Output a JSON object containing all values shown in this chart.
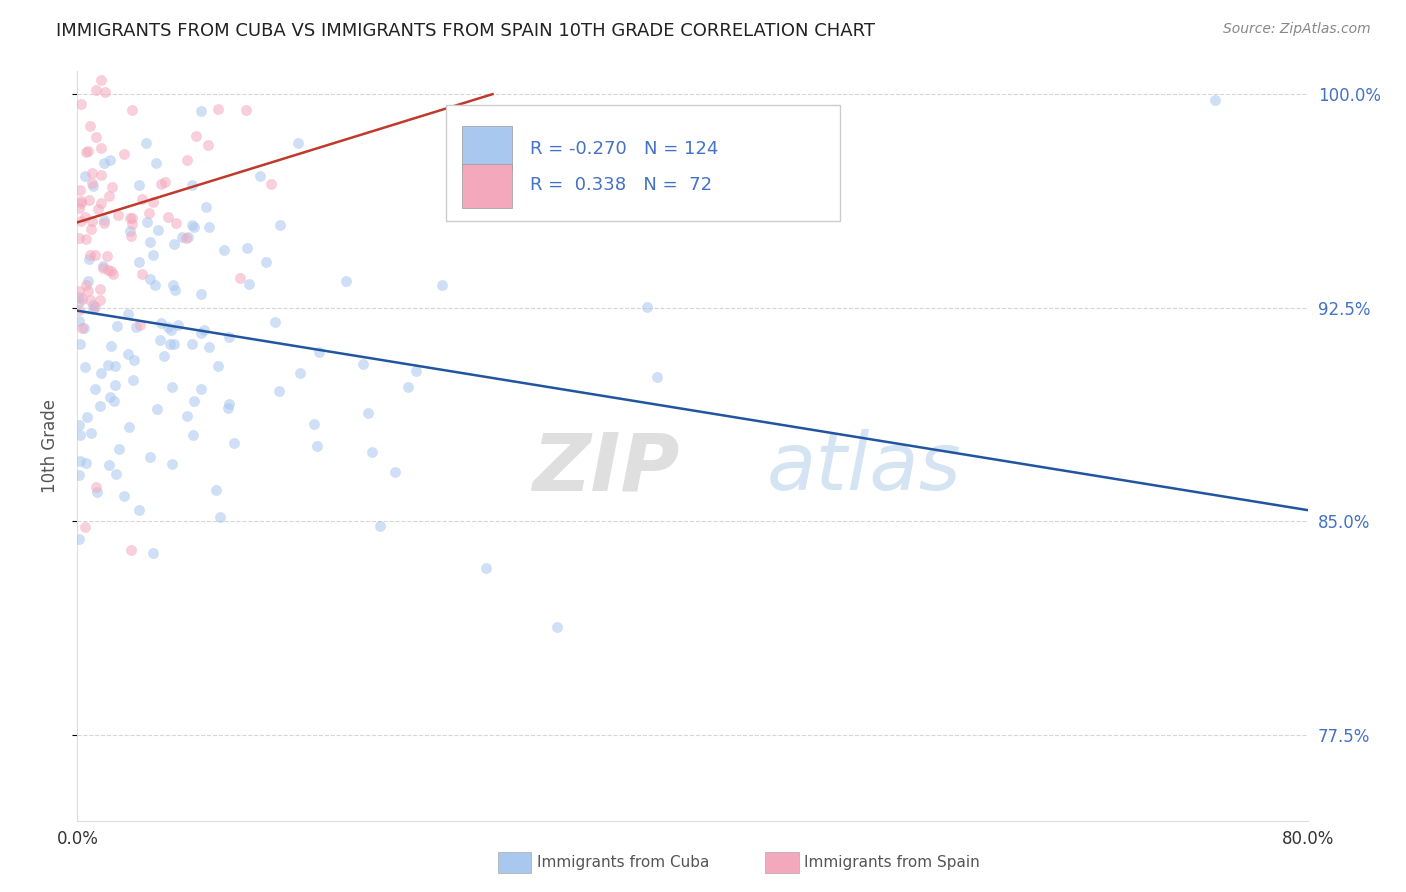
{
  "title": "IMMIGRANTS FROM CUBA VS IMMIGRANTS FROM SPAIN 10TH GRADE CORRELATION CHART",
  "source": "Source: ZipAtlas.com",
  "ylabel": "10th Grade",
  "watermark_zip": "ZIP",
  "watermark_atlas": "atlas",
  "legend_cuba": {
    "R": -0.27,
    "N": 124,
    "color": "#a8c8f0",
    "line_color": "#2155a0"
  },
  "legend_spain": {
    "R": 0.338,
    "N": 72,
    "color": "#f4a8bc",
    "line_color": "#c0392b"
  },
  "xlim": [
    0.0,
    0.8
  ],
  "ylim": [
    0.745,
    1.008
  ],
  "xticks": [
    0.0,
    0.1,
    0.2,
    0.3,
    0.4,
    0.5,
    0.6,
    0.7,
    0.8
  ],
  "xticklabels": [
    "0.0%",
    "",
    "",
    "",
    "",
    "",
    "",
    "",
    "80.0%"
  ],
  "yticks": [
    0.775,
    0.85,
    0.925,
    1.0
  ],
  "yticklabels": [
    "77.5%",
    "85.0%",
    "92.5%",
    "100.0%"
  ],
  "cuba_trendline": [
    0.0,
    0.8,
    0.924,
    0.854
  ],
  "spain_trendline": [
    0.0,
    0.27,
    0.955,
    1.0
  ],
  "dot_size": 55,
  "dot_alpha": 0.55,
  "background_color": "#ffffff",
  "grid_color": "#cccccc",
  "title_fontsize": 13,
  "tick_color": "#4472c4"
}
